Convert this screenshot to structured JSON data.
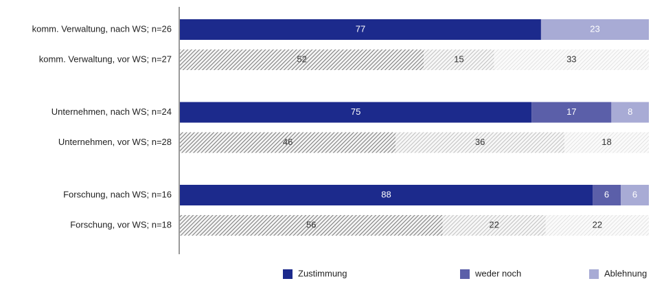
{
  "chart_data": {
    "type": "stacked_bar_horizontal",
    "categories": [
      "komm. Verwaltung, nach WS; n=26",
      "komm. Verwaltung, vor WS; n=27",
      "Unternehmen, nach WS; n=24",
      "Unternehmen, vor WS; n=28",
      "Forschung, nach WS; n=16",
      "Forschung, vor WS; n=18"
    ],
    "series": [
      {
        "name": "Zustimmung",
        "color": "#1c2a8c",
        "values": [
          77,
          52,
          75,
          46,
          88,
          56
        ]
      },
      {
        "name": "weder noch",
        "color": "#5b5fa9",
        "values": [
          null,
          15,
          17,
          36,
          6,
          22
        ]
      },
      {
        "name": "Ablehnung",
        "color": "#a8abd5",
        "values": [
          23,
          33,
          8,
          18,
          6,
          22
        ]
      }
    ],
    "hatched": [
      false,
      true,
      false,
      true,
      false,
      true
    ],
    "xlim": [
      0,
      100
    ]
  }
}
